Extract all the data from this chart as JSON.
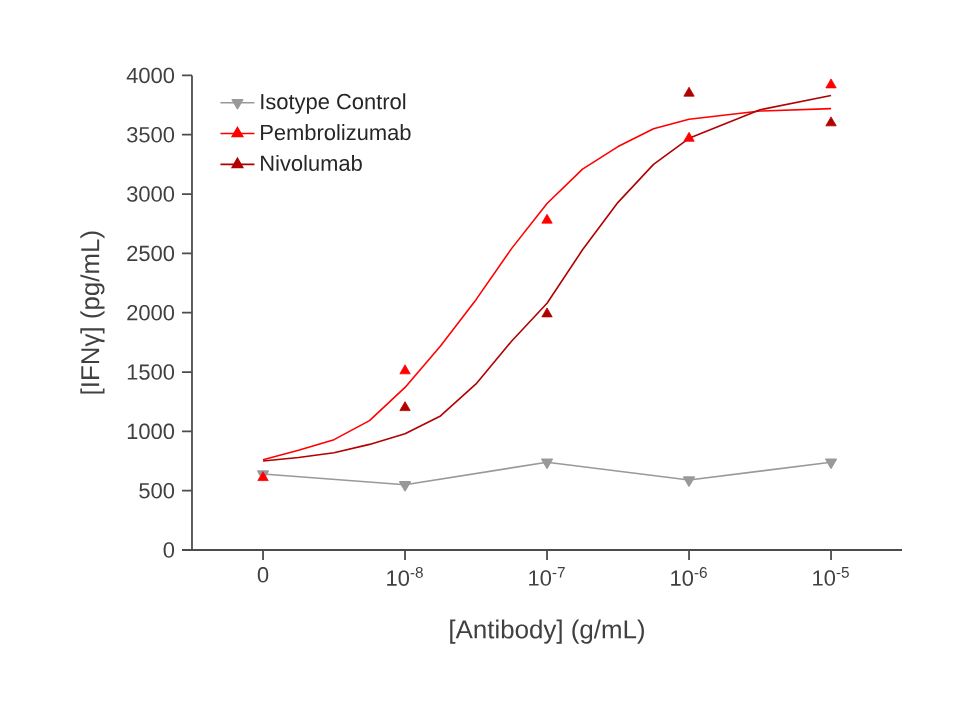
{
  "chart_data": {
    "type": "scatter",
    "xlabel": "[Antibody] (g/mL)",
    "ylabel": "[IFNγ] (pg/mL)",
    "x": [
      1e-09,
      1e-08,
      1e-07,
      1e-06,
      1e-05
    ],
    "log": "x",
    "xlim": [
      3.16e-10,
      3.16e-05
    ],
    "ylim": [
      0,
      4000
    ],
    "xticks": [
      {
        "value": 1e-09,
        "label": "0"
      },
      {
        "value": 1e-08,
        "label": "10$^{-8}$"
      },
      {
        "value": 1e-07,
        "label": "10$^{-7}$"
      },
      {
        "value": 1e-06,
        "label": "10$^{-6}$"
      },
      {
        "value": 1e-05,
        "label": "10$^{-5}$"
      }
    ],
    "yticks": [
      0,
      500,
      1000,
      1500,
      2000,
      2500,
      3000,
      3500,
      4000
    ],
    "grid": false,
    "legend": "top left",
    "marker": "triangle",
    "series": [
      {
        "name": "Isotype Control",
        "type": "line",
        "color": "#999999",
        "values": [
          640,
          550,
          740,
          590,
          740
        ]
      },
      {
        "name": "Pembrolizumab",
        "color": "#ff0000",
        "values": [
          610,
          1510,
          2780,
          3470,
          3920
        ]
      },
      {
        "name": "Nivolumab",
        "color": "#b00000",
        "values": [
          null,
          1200,
          1990,
          3850,
          3600
        ]
      },
      {
        "type": "line",
        "marker": "none",
        "color": "#ff0000",
        "x": [
          1e-09,
          1.778e-09,
          3.162e-09,
          5.623e-09,
          1e-08,
          1.778e-08,
          3.162e-08,
          5.623e-08,
          1e-07,
          1.778e-07,
          3.162e-07,
          5.623e-07,
          1e-06,
          3.162e-06,
          1e-05
        ],
        "values": [
          760,
          840,
          930,
          1090,
          1370,
          1720,
          2110,
          2540,
          2920,
          3210,
          3400,
          3550,
          3630,
          3700,
          3720
        ]
      },
      {
        "type": "line",
        "marker": "none",
        "color": "#b00000",
        "x": [
          1e-09,
          1.778e-09,
          3.162e-09,
          5.623e-09,
          1e-08,
          1.778e-08,
          3.162e-08,
          5.623e-08,
          1e-07,
          1.778e-07,
          3.162e-07,
          5.623e-07,
          1e-06,
          3.162e-06,
          1e-05
        ],
        "values": [
          750,
          780,
          820,
          890,
          980,
          1130,
          1400,
          1760,
          2080,
          2530,
          2930,
          3250,
          3470,
          3710,
          3830
        ]
      }
    ]
  }
}
